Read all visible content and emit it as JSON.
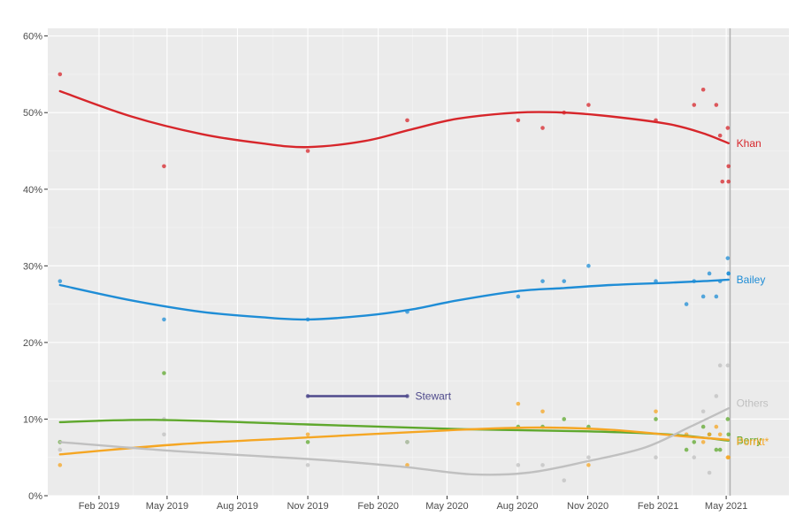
{
  "chart_data": {
    "type": "scatter",
    "title": "",
    "xlabel": "",
    "ylabel": "",
    "xlim": [
      "2018-11-26",
      "2021-07-22"
    ],
    "ylim": [
      0,
      61
    ],
    "grid": true,
    "end_marker_date": "2021-05-06",
    "x_ticks": [
      {
        "date": "2019-02-01",
        "label": "Feb 2019"
      },
      {
        "date": "2019-05-01",
        "label": "May 2019"
      },
      {
        "date": "2019-08-01",
        "label": "Aug 2019"
      },
      {
        "date": "2019-11-01",
        "label": "Nov 2019"
      },
      {
        "date": "2020-02-01",
        "label": "Feb 2020"
      },
      {
        "date": "2020-05-01",
        "label": "May 2020"
      },
      {
        "date": "2020-08-01",
        "label": "Aug 2020"
      },
      {
        "date": "2020-11-01",
        "label": "Nov 2020"
      },
      {
        "date": "2021-02-01",
        "label": "Feb 2021"
      },
      {
        "date": "2021-05-01",
        "label": "May 2021"
      }
    ],
    "y_ticks": [
      {
        "value": 0,
        "label": "0%"
      },
      {
        "value": 10,
        "label": "10%"
      },
      {
        "value": 20,
        "label": "20%"
      },
      {
        "value": 30,
        "label": "30%"
      },
      {
        "value": 40,
        "label": "40%"
      },
      {
        "value": 50,
        "label": "50%"
      },
      {
        "value": 60,
        "label": "60%"
      }
    ],
    "series": [
      {
        "name": "Khan",
        "color": "#d7262b",
        "points": [
          [
            "2018-12-12",
            55
          ],
          [
            "2019-04-27",
            43
          ],
          [
            "2019-11-01",
            45
          ],
          [
            "2020-03-10",
            49
          ],
          [
            "2020-08-02",
            49
          ],
          [
            "2020-09-03",
            48
          ],
          [
            "2020-10-01",
            50
          ],
          [
            "2020-11-02",
            51
          ],
          [
            "2021-01-29",
            49
          ],
          [
            "2021-03-20",
            51
          ],
          [
            "2021-04-01",
            53
          ],
          [
            "2021-04-18",
            51
          ],
          [
            "2021-04-23",
            47
          ],
          [
            "2021-04-26",
            41
          ],
          [
            "2021-05-03",
            48
          ],
          [
            "2021-05-04",
            43
          ],
          [
            "2021-05-04",
            41
          ]
        ],
        "trend": [
          [
            "2018-12-12",
            52.8
          ],
          [
            "2019-03-15",
            49.5
          ],
          [
            "2019-06-15",
            47.2
          ],
          [
            "2019-09-01",
            46
          ],
          [
            "2019-11-01",
            45.5
          ],
          [
            "2020-01-15",
            46.3
          ],
          [
            "2020-03-15",
            47.8
          ],
          [
            "2020-05-15",
            49.2
          ],
          [
            "2020-08-01",
            50
          ],
          [
            "2020-10-01",
            50
          ],
          [
            "2020-12-01",
            49.5
          ],
          [
            "2021-02-15",
            48.5
          ],
          [
            "2021-04-01",
            47.3
          ],
          [
            "2021-05-04",
            46
          ]
        ]
      },
      {
        "name": "Bailey",
        "color": "#1f8dd6",
        "points": [
          [
            "2018-12-12",
            28
          ],
          [
            "2019-04-27",
            23
          ],
          [
            "2019-11-01",
            23
          ],
          [
            "2020-03-10",
            24
          ],
          [
            "2020-08-02",
            26
          ],
          [
            "2020-09-03",
            28
          ],
          [
            "2020-10-01",
            28
          ],
          [
            "2020-11-02",
            30
          ],
          [
            "2021-01-29",
            28
          ],
          [
            "2021-03-10",
            25
          ],
          [
            "2021-03-20",
            28
          ],
          [
            "2021-04-01",
            26
          ],
          [
            "2021-04-09",
            29
          ],
          [
            "2021-04-18",
            26
          ],
          [
            "2021-04-23",
            28
          ],
          [
            "2021-05-03",
            31
          ],
          [
            "2021-05-04",
            29
          ],
          [
            "2021-05-04",
            29
          ]
        ],
        "trend": [
          [
            "2018-12-12",
            27.5
          ],
          [
            "2019-03-15",
            25.5
          ],
          [
            "2019-06-15",
            24
          ],
          [
            "2019-09-01",
            23.3
          ],
          [
            "2019-11-01",
            23
          ],
          [
            "2020-01-15",
            23.5
          ],
          [
            "2020-03-15",
            24.3
          ],
          [
            "2020-05-15",
            25.5
          ],
          [
            "2020-08-01",
            26.7
          ],
          [
            "2020-10-01",
            27.1
          ],
          [
            "2020-12-01",
            27.5
          ],
          [
            "2021-02-15",
            27.8
          ],
          [
            "2021-04-01",
            28
          ],
          [
            "2021-05-04",
            28.2
          ]
        ]
      },
      {
        "name": "Berry",
        "color": "#5fa82d",
        "points": [
          [
            "2018-12-12",
            7
          ],
          [
            "2019-04-27",
            16
          ],
          [
            "2019-11-01",
            7
          ],
          [
            "2020-03-10",
            7
          ],
          [
            "2020-08-02",
            9
          ],
          [
            "2020-09-03",
            9
          ],
          [
            "2020-10-01",
            10
          ],
          [
            "2020-11-02",
            9
          ],
          [
            "2021-01-29",
            10
          ],
          [
            "2021-03-10",
            6
          ],
          [
            "2021-03-20",
            7
          ],
          [
            "2021-04-01",
            9
          ],
          [
            "2021-04-09",
            8
          ],
          [
            "2021-04-18",
            6
          ],
          [
            "2021-04-23",
            6
          ],
          [
            "2021-05-03",
            10
          ],
          [
            "2021-05-04",
            8
          ]
        ],
        "trend": [
          [
            "2018-12-12",
            9.6
          ],
          [
            "2019-04-15",
            9.9
          ],
          [
            "2019-11-01",
            9.3
          ],
          [
            "2020-05-15",
            8.7
          ],
          [
            "2020-11-01",
            8.4
          ],
          [
            "2021-02-15",
            8
          ],
          [
            "2021-05-04",
            7.2
          ]
        ]
      },
      {
        "name": "Porritt*",
        "color": "#f5a623",
        "points": [
          [
            "2018-12-12",
            4
          ],
          [
            "2019-11-01",
            8
          ],
          [
            "2020-03-10",
            4
          ],
          [
            "2020-08-02",
            12
          ],
          [
            "2020-09-03",
            11
          ],
          [
            "2020-11-02",
            4
          ],
          [
            "2021-01-29",
            11
          ],
          [
            "2021-03-10",
            8
          ],
          [
            "2021-04-01",
            7
          ],
          [
            "2021-04-09",
            8
          ],
          [
            "2021-04-18",
            9
          ],
          [
            "2021-04-23",
            8
          ],
          [
            "2021-05-03",
            5
          ],
          [
            "2021-05-04",
            5
          ]
        ],
        "trend": [
          [
            "2018-12-12",
            5.4
          ],
          [
            "2019-05-15",
            6.7
          ],
          [
            "2019-11-01",
            7.6
          ],
          [
            "2020-05-15",
            8.6
          ],
          [
            "2020-09-01",
            8.9
          ],
          [
            "2020-12-01",
            8.6
          ],
          [
            "2021-03-01",
            7.8
          ],
          [
            "2021-05-04",
            7.3
          ]
        ]
      },
      {
        "name": "Others",
        "color": "#c0c0c0",
        "points": [
          [
            "2018-12-12",
            6
          ],
          [
            "2019-04-27",
            8
          ],
          [
            "2019-04-27",
            10
          ],
          [
            "2019-11-01",
            4
          ],
          [
            "2020-03-10",
            7
          ],
          [
            "2020-08-02",
            4
          ],
          [
            "2020-09-03",
            4
          ],
          [
            "2020-10-01",
            2
          ],
          [
            "2020-11-02",
            5
          ],
          [
            "2021-01-29",
            5
          ],
          [
            "2021-03-20",
            5
          ],
          [
            "2021-04-01",
            11
          ],
          [
            "2021-04-09",
            3
          ],
          [
            "2021-04-18",
            13
          ],
          [
            "2021-04-23",
            17
          ],
          [
            "2021-05-03",
            17
          ]
        ],
        "trend": [
          [
            "2018-12-12",
            7
          ],
          [
            "2019-05-15",
            5.8
          ],
          [
            "2019-11-01",
            4.8
          ],
          [
            "2020-03-01",
            3.8
          ],
          [
            "2020-06-01",
            2.8
          ],
          [
            "2020-08-15",
            3
          ],
          [
            "2020-11-01",
            4.5
          ],
          [
            "2021-01-15",
            6.3
          ],
          [
            "2021-03-15",
            9
          ],
          [
            "2021-05-04",
            11.4
          ]
        ]
      },
      {
        "name": "Stewart",
        "color": "#4f4a8c",
        "points": [
          [
            "2019-11-01",
            13
          ],
          [
            "2020-03-10",
            13
          ]
        ],
        "trend": [
          [
            "2019-11-01",
            13
          ],
          [
            "2020-03-10",
            13
          ]
        ]
      }
    ]
  }
}
